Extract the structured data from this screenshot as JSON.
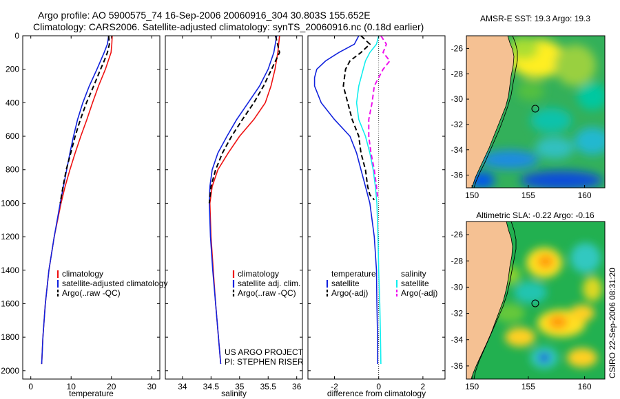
{
  "header": {
    "line1": "Argo profile: AO 5900575_74 16-Sep-2006 20060916_304 30.803S 155.652E",
    "line2": "Climatology: CARS2006. Satellite-adjusted climatology: synTS_20060916.nc (0.18d earlier)"
  },
  "colors": {
    "climatology": "#ee1111",
    "satellite": "#1122dd",
    "argo": "#000000",
    "salinity_satellite": "#11eeee",
    "salinity_argo": "#ee11ee",
    "land": "#f5c193"
  },
  "chart_data": [
    {
      "type": "line",
      "title": "",
      "xlabel": "temperature",
      "ylabel": "",
      "xlim": [
        -2,
        32
      ],
      "ylim": [
        2050,
        0
      ],
      "x_ticks": [
        0,
        10,
        20,
        30
      ],
      "y_ticks": [
        0,
        200,
        400,
        600,
        800,
        1000,
        1200,
        1400,
        1600,
        1800,
        2000
      ],
      "legend": [
        "climatology",
        "satellite-adjusted climatology",
        "Argo(..raw -QC)"
      ],
      "series": [
        {
          "name": "climatology",
          "style": "solid",
          "color_key": "climatology",
          "depth": [
            0,
            50,
            100,
            150,
            200,
            300,
            400,
            500,
            600,
            700,
            800,
            900,
            1000,
            1200,
            1400,
            1600,
            1800,
            1960
          ],
          "values": [
            20.2,
            20.1,
            19.9,
            19.2,
            18.5,
            16.8,
            15.3,
            13.9,
            12.4,
            11.0,
            9.7,
            8.5,
            7.5,
            5.8,
            4.5,
            3.6,
            3.0,
            2.7
          ]
        },
        {
          "name": "satellite-adjusted climatology",
          "style": "solid",
          "color_key": "satellite",
          "depth": [
            0,
            50,
            100,
            150,
            200,
            300,
            400,
            500,
            600,
            700,
            800,
            900,
            1000,
            1200,
            1400,
            1600,
            1800,
            1960
          ],
          "values": [
            19.3,
            19.0,
            18.2,
            17.3,
            16.4,
            14.5,
            12.9,
            11.6,
            10.6,
            9.7,
            8.9,
            8.1,
            7.3,
            5.8,
            4.5,
            3.6,
            3.0,
            2.7
          ]
        },
        {
          "name": "Argo(..raw -QC)",
          "style": "dashed",
          "color_key": "argo",
          "depth": [
            0,
            50,
            100,
            150,
            200,
            300,
            400,
            500,
            600,
            700,
            800,
            900,
            1000
          ],
          "values": [
            19.3,
            19.5,
            19.0,
            18.2,
            17.3,
            15.6,
            13.8,
            12.3,
            11.0,
            9.9,
            8.8,
            8.0,
            7.3
          ]
        }
      ]
    },
    {
      "type": "line",
      "title": "",
      "xlabel": "salinity",
      "ylabel": "",
      "xlim": [
        33.7,
        36.1
      ],
      "ylim": [
        2050,
        0
      ],
      "x_ticks": [
        34,
        34.5,
        35,
        35.5,
        36
      ],
      "legend": [
        "climatology",
        "satellite adj. clim.",
        "Argo(..raw -QC)"
      ],
      "series": [
        {
          "name": "climatology",
          "style": "solid",
          "color_key": "climatology",
          "depth": [
            0,
            100,
            200,
            300,
            400,
            500,
            600,
            700,
            800,
            900,
            1000,
            1200,
            1400,
            1600,
            1800,
            1960
          ],
          "values": [
            35.7,
            35.67,
            35.62,
            35.55,
            35.45,
            35.25,
            35.0,
            34.8,
            34.62,
            34.52,
            34.48,
            34.5,
            34.54,
            34.58,
            34.63,
            34.67
          ]
        },
        {
          "name": "satellite adj. clim.",
          "style": "solid",
          "color_key": "satellite",
          "depth": [
            0,
            100,
            200,
            300,
            400,
            500,
            600,
            700,
            800,
            900,
            1000,
            1200,
            1400,
            1600,
            1800,
            1960
          ],
          "values": [
            35.65,
            35.6,
            35.5,
            35.35,
            35.15,
            34.95,
            34.78,
            34.62,
            34.52,
            34.48,
            34.47,
            34.49,
            34.53,
            34.58,
            34.63,
            34.67
          ]
        },
        {
          "name": "Argo(..raw -QC)",
          "style": "dashed",
          "color_key": "argo",
          "depth": [
            0,
            100,
            200,
            300,
            400,
            500,
            600,
            700,
            800,
            900,
            1000
          ],
          "values": [
            35.63,
            35.7,
            35.56,
            35.42,
            35.25,
            35.05,
            34.86,
            34.7,
            34.58,
            34.5,
            34.47
          ]
        }
      ]
    },
    {
      "type": "line",
      "title": "",
      "xlabel": "difference from climatology",
      "ylabel": "",
      "xlim": [
        -3.2,
        3.0
      ],
      "ylim": [
        2050,
        0
      ],
      "x_ticks": [
        -2,
        0,
        2
      ],
      "zero_line": true,
      "legend": {
        "temperature_heading": "temperature",
        "salinity_heading": "salinity",
        "temperature": [
          "satellite",
          "Argo(-adj)"
        ],
        "salinity": [
          "satellite",
          "Argo(-adj)"
        ]
      },
      "series": [
        {
          "name": "temperature satellite",
          "style": "solid",
          "color_key": "satellite",
          "depth": [
            0,
            50,
            100,
            150,
            200,
            250,
            300,
            400,
            500,
            600,
            700,
            800,
            900,
            1000,
            1200,
            1400,
            1600,
            1800,
            1960
          ],
          "values": [
            -0.9,
            -1.1,
            -1.8,
            -2.4,
            -2.8,
            -2.9,
            -2.9,
            -2.6,
            -2.0,
            -1.3,
            -1.0,
            -0.8,
            -0.6,
            -0.4,
            -0.2,
            -0.1,
            -0.08,
            -0.05,
            -0.05
          ]
        },
        {
          "name": "temperature Argo(-adj)",
          "style": "dashed",
          "color_key": "argo",
          "depth": [
            0,
            50,
            100,
            150,
            200,
            300,
            400,
            500,
            600,
            700,
            800,
            900,
            950,
            980
          ],
          "values": [
            -0.8,
            -0.4,
            -0.8,
            -1.3,
            -1.5,
            -1.6,
            -1.4,
            -1.2,
            -0.9,
            -0.8,
            -0.6,
            -0.5,
            -0.4,
            -0.2
          ]
        },
        {
          "name": "salinity satellite",
          "style": "solid",
          "color_key": "salinity_satellite",
          "depth": [
            0,
            50,
            100,
            150,
            200,
            300,
            400,
            500,
            600,
            700,
            800,
            900,
            1000,
            1200,
            1400,
            1600,
            1800,
            1960
          ],
          "values": [
            0.0,
            -0.1,
            -0.4,
            -0.6,
            -0.7,
            -0.9,
            -1.0,
            -0.9,
            -0.6,
            -0.4,
            -0.25,
            -0.15,
            -0.08,
            -0.03,
            0.0,
            0.05,
            0.08,
            0.1
          ]
        },
        {
          "name": "salinity Argo(-adj)",
          "style": "dashed",
          "color_key": "salinity_argo",
          "depth": [
            0,
            50,
            100,
            150,
            200,
            300,
            400,
            500,
            600,
            700,
            800,
            900,
            960
          ],
          "values": [
            0.1,
            0.35,
            0.2,
            0.5,
            0.2,
            -0.2,
            -0.3,
            -0.45,
            -0.45,
            -0.35,
            -0.2,
            -0.1,
            -0.05
          ]
        }
      ],
      "annotation": [
        "US ARGO PROJECT",
        "PI: STEPHEN RISER"
      ]
    },
    {
      "type": "heatmap",
      "title": "AMSR-E SST: 19.3  Argo: 19.3",
      "xlim": [
        149.5,
        161.8
      ],
      "ylim": [
        -37,
        -25
      ],
      "x_ticks": [
        150,
        155,
        160
      ],
      "y_ticks": [
        -26,
        -28,
        -30,
        -32,
        -34,
        -36
      ],
      "float_marker": {
        "lon": 155.65,
        "lat": -30.8
      }
    },
    {
      "type": "heatmap",
      "title": "Altimetric SLA: -0.22  Argo: -0.16",
      "xlim": [
        149.5,
        161.8
      ],
      "ylim": [
        -37,
        -25
      ],
      "x_ticks": [
        150,
        155,
        160
      ],
      "y_ticks": [
        -26,
        -28,
        -30,
        -32,
        -34,
        -36
      ],
      "float_marker": {
        "lon": 155.65,
        "lat": -30.8
      }
    }
  ],
  "side_label": "CSIRO  22-Sep-2006 08:31:20"
}
